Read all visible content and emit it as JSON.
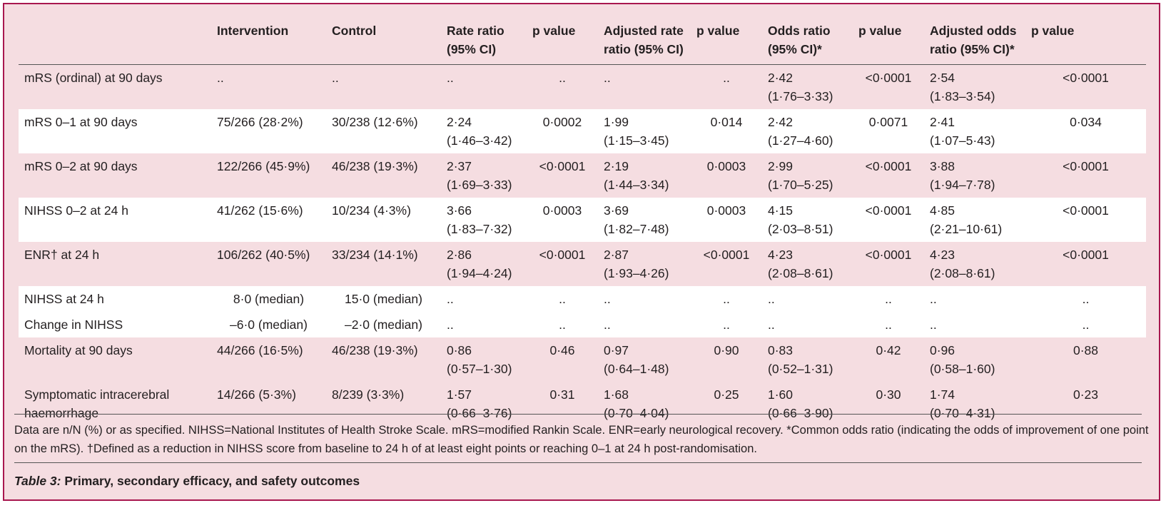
{
  "colors": {
    "background": "#f5dde1",
    "white_row": "#ffffff",
    "border": "#a8174f",
    "text": "#231f20"
  },
  "columns": [
    {
      "line1": "",
      "line2": ""
    },
    {
      "line1": "Intervention",
      "line2": ""
    },
    {
      "line1": "Control",
      "line2": ""
    },
    {
      "line1": "Rate ratio",
      "line2": "(95% CI)"
    },
    {
      "line1": "p value",
      "line2": ""
    },
    {
      "line1": "Adjusted rate",
      "line2": "ratio (95% CI)"
    },
    {
      "line1": "p value",
      "line2": ""
    },
    {
      "line1": "Odds ratio",
      "line2": "(95% CI)*"
    },
    {
      "line1": "p value",
      "line2": ""
    },
    {
      "line1": "Adjusted odds",
      "line2": "ratio (95% CI)*"
    },
    {
      "line1": "p value",
      "line2": ""
    }
  ],
  "rows": [
    {
      "outcome_1": "mRS (ordinal) at 90 days",
      "outcome_2": "",
      "intervention": "..",
      "control": "..",
      "rr": "..",
      "rr_ci": "",
      "rr_p": "..",
      "arr": "..",
      "arr_ci": "",
      "arr_p": "..",
      "or": "2·42",
      "or_ci": "(1·76–3·33)",
      "or_p": "<0·0001",
      "aor": "2·54",
      "aor_ci": "(1·83–3·54)",
      "aor_p": "<0·0001"
    },
    {
      "outcome_1": "mRS 0–1 at 90 days",
      "outcome_2": "",
      "intervention": "75/266 (28·2%)",
      "control": "30/238 (12·6%)",
      "rr": "2·24",
      "rr_ci": "(1·46–3·42)",
      "rr_p": "0·0002",
      "arr": "1·99",
      "arr_ci": "(1·15–3·45)",
      "arr_p": "0·014",
      "or": "2·42",
      "or_ci": "(1·27–4·60)",
      "or_p": "0·0071",
      "aor": "2·41",
      "aor_ci": "(1·07–5·43)",
      "aor_p": "0·034"
    },
    {
      "outcome_1": "mRS 0–2 at 90 days",
      "outcome_2": "",
      "intervention": "122/266 (45·9%)",
      "control": "46/238 (19·3%)",
      "rr": "2·37",
      "rr_ci": "(1·69–3·33)",
      "rr_p": "<0·0001",
      "arr": "2·19",
      "arr_ci": "(1·44–3·34)",
      "arr_p": "0·0003",
      "or": "2·99",
      "or_ci": "(1·70–5·25)",
      "or_p": "<0·0001",
      "aor": "3·88",
      "aor_ci": "(1·94–7·78)",
      "aor_p": "<0·0001"
    },
    {
      "outcome_1": "NIHSS 0–2 at 24 h",
      "outcome_2": "",
      "intervention": "41/262 (15·6%)",
      "control": "10/234 (4·3%)",
      "rr": "3·66",
      "rr_ci": "(1·83–7·32)",
      "rr_p": "0·0003",
      "arr": "3·69",
      "arr_ci": "(1·82–7·48)",
      "arr_p": "0·0003",
      "or": "4·15",
      "or_ci": "(2·03–8·51)",
      "or_p": "<0·0001",
      "aor": "4·85",
      "aor_ci": "(2·21–10·61)",
      "aor_p": "<0·0001"
    },
    {
      "outcome_1": "ENR† at 24 h",
      "outcome_2": "",
      "intervention": "106/262 (40·5%)",
      "control": "33/234 (14·1%)",
      "rr": "2·86",
      "rr_ci": "(1·94–4·24)",
      "rr_p": "<0·0001",
      "arr": "2·87",
      "arr_ci": "(1·93–4·26)",
      "arr_p": "<0·0001",
      "or": "4·23",
      "or_ci": "(2·08–8·61)",
      "or_p": "<0·0001",
      "aor": "4·23",
      "aor_ci": "(2·08–8·61)",
      "aor_p": "<0·0001"
    },
    {
      "outcome_1": "NIHSS at 24 h",
      "outcome_2": "",
      "intervention": "8·0 (median)",
      "control": "15·0 (median)",
      "rr": "..",
      "rr_ci": "",
      "rr_p": "..",
      "arr": "..",
      "arr_ci": "",
      "arr_p": "..",
      "or": "..",
      "or_ci": "",
      "or_p": "..",
      "aor": "..",
      "aor_ci": "",
      "aor_p": ".."
    },
    {
      "outcome_1": "Change in NIHSS",
      "outcome_2": "",
      "intervention": "–6·0 (median)",
      "control": "–2·0 (median)",
      "rr": "..",
      "rr_ci": "",
      "rr_p": "..",
      "arr": "..",
      "arr_ci": "",
      "arr_p": "..",
      "or": "..",
      "or_ci": "",
      "or_p": "..",
      "aor": "..",
      "aor_ci": "",
      "aor_p": ".."
    },
    {
      "outcome_1": "Mortality at 90 days",
      "outcome_2": "",
      "intervention": "44/266 (16·5%)",
      "control": "46/238 (19·3%)",
      "rr": "0·86",
      "rr_ci": "(0·57–1·30)",
      "rr_p": "0·46",
      "arr": "0·97",
      "arr_ci": "(0·64–1·48)",
      "arr_p": "0·90",
      "or": "0·83",
      "or_ci": "(0·52–1·31)",
      "or_p": "0·42",
      "aor": "0·96",
      "aor_ci": "(0·58–1·60)",
      "aor_p": "0·88"
    },
    {
      "outcome_1": "Symptomatic intracerebral",
      "outcome_2": "haemorrhage",
      "intervention": "14/266 (5·3%)",
      "control": "8/239 (3·3%)",
      "rr": "1·57",
      "rr_ci": "(0·66–3·76)",
      "rr_p": "0·31",
      "arr": "1·68",
      "arr_ci": "(0·70–4·04)",
      "arr_p": "0·25",
      "or": "1·60",
      "or_ci": "(0·66–3·90)",
      "or_p": "0·30",
      "aor": "1·74",
      "aor_ci": "(0·70–4·31)",
      "aor_p": "0·23"
    }
  ],
  "footnote": "Data are n/N (%) or as specified. NIHSS=National Institutes of Health Stroke Scale. mRS=modified Rankin Scale. ENR=early neurological recovery. *Common odds ratio (indicating the odds of improvement of one point on the mRS). †Defined as a reduction in NIHSS score from baseline to 24 h of at least eight points or reaching 0–1 at 24 h post-randomisation.",
  "caption": {
    "number": "Table 3:",
    "text": "Primary, secondary efficacy, and safety outcomes"
  }
}
